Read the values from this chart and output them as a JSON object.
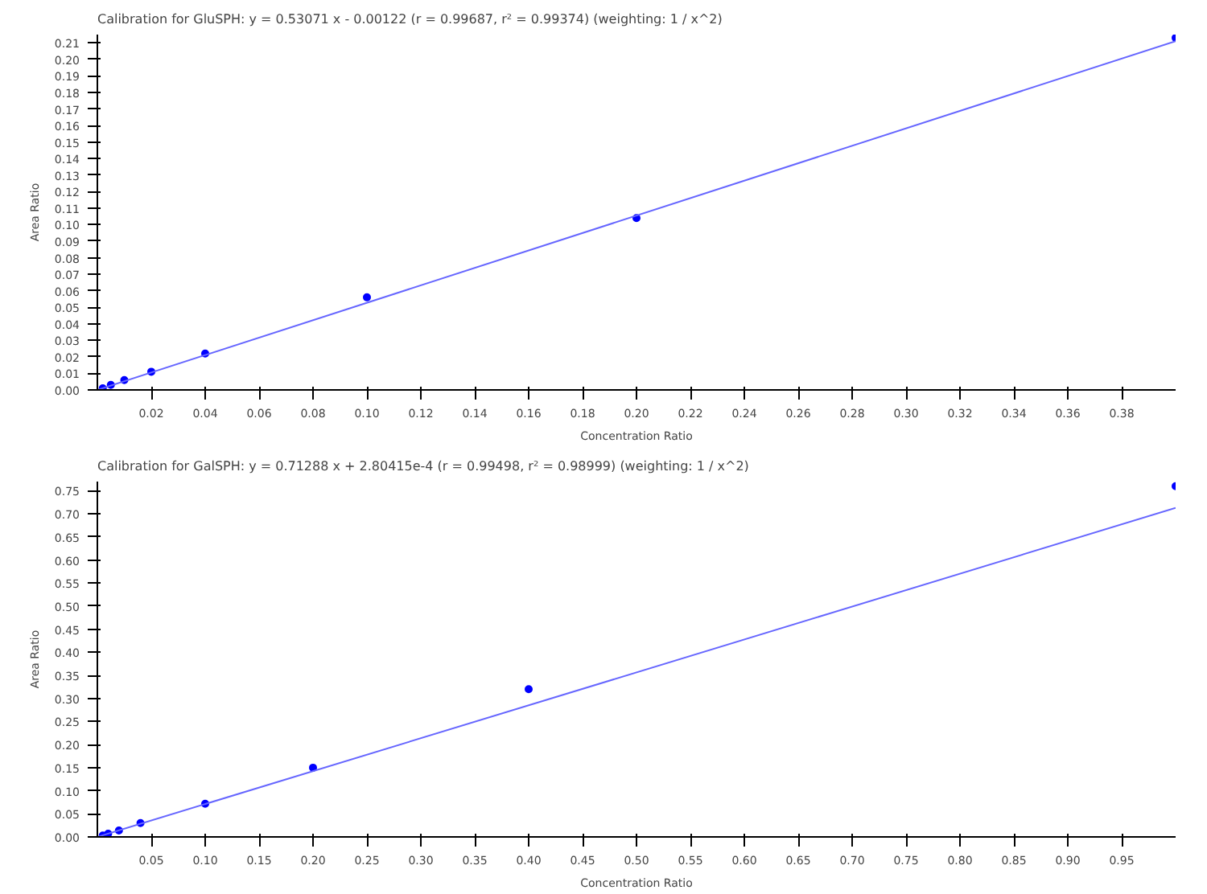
{
  "chart_data": [
    {
      "type": "scatter",
      "title": "Calibration for GluSPH: y = 0.53071 x - 0.00122 (r = 0.99687, r² = 0.99374)  (weighting: 1 / x^2)",
      "xlabel": "Concentration Ratio",
      "ylabel": "Area Ratio",
      "grid": false,
      "xlim": [
        0,
        0.4
      ],
      "ylim": [
        0,
        0.215
      ],
      "xticks": [
        {
          "value": 0.02,
          "label": "0.02"
        },
        {
          "value": 0.04,
          "label": "0.04"
        },
        {
          "value": 0.06,
          "label": "0.06"
        },
        {
          "value": 0.08,
          "label": "0.08"
        },
        {
          "value": 0.1,
          "label": "0.10"
        },
        {
          "value": 0.12,
          "label": "0.12"
        },
        {
          "value": 0.14,
          "label": "0.14"
        },
        {
          "value": 0.16,
          "label": "0.16"
        },
        {
          "value": 0.18,
          "label": "0.18"
        },
        {
          "value": 0.2,
          "label": "0.20"
        },
        {
          "value": 0.22,
          "label": "0.22"
        },
        {
          "value": 0.24,
          "label": "0.24"
        },
        {
          "value": 0.26,
          "label": "0.26"
        },
        {
          "value": 0.28,
          "label": "0.28"
        },
        {
          "value": 0.3,
          "label": "0.30"
        },
        {
          "value": 0.32,
          "label": "0.32"
        },
        {
          "value": 0.34,
          "label": "0.34"
        },
        {
          "value": 0.36,
          "label": "0.36"
        },
        {
          "value": 0.38,
          "label": "0.38"
        }
      ],
      "yticks": [
        {
          "value": 0,
          "label": "0.00"
        },
        {
          "value": 0.01,
          "label": "0.01"
        },
        {
          "value": 0.02,
          "label": "0.02"
        },
        {
          "value": 0.03,
          "label": "0.03"
        },
        {
          "value": 0.04,
          "label": "0.04"
        },
        {
          "value": 0.05,
          "label": "0.05"
        },
        {
          "value": 0.06,
          "label": "0.06"
        },
        {
          "value": 0.07,
          "label": "0.07"
        },
        {
          "value": 0.08,
          "label": "0.08"
        },
        {
          "value": 0.09,
          "label": "0.09"
        },
        {
          "value": 0.1,
          "label": "0.10"
        },
        {
          "value": 0.11,
          "label": "0.11"
        },
        {
          "value": 0.12,
          "label": "0.12"
        },
        {
          "value": 0.13,
          "label": "0.13"
        },
        {
          "value": 0.14,
          "label": "0.14"
        },
        {
          "value": 0.15,
          "label": "0.15"
        },
        {
          "value": 0.16,
          "label": "0.16"
        },
        {
          "value": 0.17,
          "label": "0.17"
        },
        {
          "value": 0.18,
          "label": "0.18"
        },
        {
          "value": 0.19,
          "label": "0.19"
        },
        {
          "value": 0.2,
          "label": "0.20"
        },
        {
          "value": 0.21,
          "label": "0.21"
        }
      ],
      "series": [
        {
          "marker": "circle",
          "color": "#0000ff",
          "x": [
            0.002,
            0.005,
            0.01,
            0.02,
            0.04,
            0.1,
            0.2,
            0.4
          ],
          "values": [
            0.001,
            0.003,
            0.006,
            0.011,
            0.022,
            0.056,
            0.104,
            0.213
          ]
        },
        {
          "type": "line",
          "marker": "none",
          "color": "#6666ff",
          "x": [
            0,
            0.4
          ],
          "values": [
            0,
            0.211
          ]
        }
      ]
    },
    {
      "type": "scatter",
      "title": "Calibration for GalSPH: y = 0.71288 x + 2.80415e-4 (r = 0.99498, r² = 0.98999)  (weighting: 1 / x^2)",
      "xlabel": "Concentration Ratio",
      "ylabel": "Area Ratio",
      "grid": false,
      "xlim": [
        0,
        1.0
      ],
      "ylim": [
        0,
        0.77
      ],
      "xticks": [
        {
          "value": 0.05,
          "label": "0.05"
        },
        {
          "value": 0.1,
          "label": "0.10"
        },
        {
          "value": 0.15,
          "label": "0.15"
        },
        {
          "value": 0.2,
          "label": "0.20"
        },
        {
          "value": 0.25,
          "label": "0.25"
        },
        {
          "value": 0.3,
          "label": "0.30"
        },
        {
          "value": 0.35,
          "label": "0.35"
        },
        {
          "value": 0.4,
          "label": "0.40"
        },
        {
          "value": 0.45,
          "label": "0.45"
        },
        {
          "value": 0.5,
          "label": "0.50"
        },
        {
          "value": 0.55,
          "label": "0.55"
        },
        {
          "value": 0.6,
          "label": "0.60"
        },
        {
          "value": 0.65,
          "label": "0.65"
        },
        {
          "value": 0.7,
          "label": "0.70"
        },
        {
          "value": 0.75,
          "label": "0.75"
        },
        {
          "value": 0.8,
          "label": "0.80"
        },
        {
          "value": 0.85,
          "label": "0.85"
        },
        {
          "value": 0.9,
          "label": "0.90"
        },
        {
          "value": 0.95,
          "label": "0.95"
        }
      ],
      "yticks": [
        {
          "value": 0,
          "label": "0.00"
        },
        {
          "value": 0.05,
          "label": "0.05"
        },
        {
          "value": 0.1,
          "label": "0.10"
        },
        {
          "value": 0.15,
          "label": "0.15"
        },
        {
          "value": 0.2,
          "label": "0.20"
        },
        {
          "value": 0.25,
          "label": "0.25"
        },
        {
          "value": 0.3,
          "label": "0.30"
        },
        {
          "value": 0.35,
          "label": "0.35"
        },
        {
          "value": 0.4,
          "label": "0.40"
        },
        {
          "value": 0.45,
          "label": "0.45"
        },
        {
          "value": 0.5,
          "label": "0.50"
        },
        {
          "value": 0.55,
          "label": "0.55"
        },
        {
          "value": 0.6,
          "label": "0.60"
        },
        {
          "value": 0.65,
          "label": "0.65"
        },
        {
          "value": 0.7,
          "label": "0.70"
        },
        {
          "value": 0.75,
          "label": "0.75"
        }
      ],
      "series": [
        {
          "marker": "circle",
          "color": "#0000ff",
          "x": [
            0.005,
            0.01,
            0.02,
            0.04,
            0.1,
            0.2,
            0.4,
            1.0
          ],
          "values": [
            0.003,
            0.007,
            0.014,
            0.03,
            0.072,
            0.15,
            0.32,
            0.76
          ]
        },
        {
          "type": "line",
          "marker": "none",
          "color": "#6666ff",
          "x": [
            0,
            1.0
          ],
          "values": [
            0,
            0.713
          ]
        }
      ]
    }
  ]
}
